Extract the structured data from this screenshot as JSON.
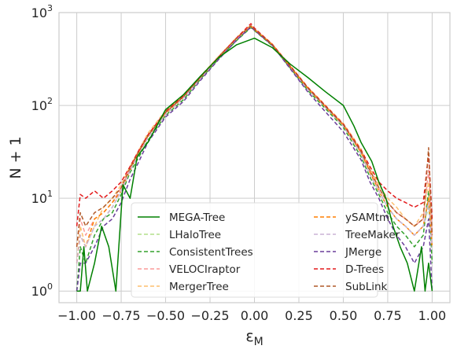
{
  "chart_data": {
    "type": "line",
    "xlabel": "ε",
    "xlabel_sub": "M",
    "ylabel": "N + 1",
    "xlim": [
      -1.1,
      1.1
    ],
    "ylim": [
      0.75,
      1000
    ],
    "yscale": "log",
    "grid": true,
    "legend_placement": "lower-center",
    "legend_columns": 2,
    "x_ticks": [
      -1.0,
      -0.75,
      -0.5,
      -0.25,
      0.0,
      0.25,
      0.5,
      0.75,
      1.0
    ],
    "x_tick_labels": [
      "−1.00",
      "−0.75",
      "−0.50",
      "−0.25",
      "0.00",
      "0.25",
      "0.50",
      "0.75",
      "1.00"
    ],
    "y_ticks": [
      1,
      10,
      100,
      1000
    ],
    "y_tick_labels": [
      {
        "base": "10",
        "exp": "0"
      },
      {
        "base": "10",
        "exp": "1"
      },
      {
        "base": "10",
        "exp": "2"
      },
      {
        "base": "10",
        "exp": "3"
      }
    ],
    "series": [
      {
        "name": "MEGA-Tree",
        "color": "#008000",
        "dash": "solid",
        "x": [
          -1.0,
          -0.98,
          -0.96,
          -0.94,
          -0.9,
          -0.86,
          -0.82,
          -0.78,
          -0.74,
          -0.7,
          -0.66,
          -0.6,
          -0.5,
          -0.4,
          -0.3,
          -0.2,
          -0.1,
          0.0,
          0.1,
          0.2,
          0.3,
          0.4,
          0.5,
          0.56,
          0.6,
          0.66,
          0.7,
          0.74,
          0.78,
          0.82,
          0.86,
          0.9,
          0.94,
          0.96,
          0.98,
          1.0
        ],
        "y": [
          1,
          1,
          3,
          1,
          2,
          5,
          3,
          1,
          14,
          10,
          28,
          40,
          90,
          130,
          210,
          330,
          450,
          530,
          420,
          280,
          200,
          140,
          100,
          60,
          40,
          25,
          15,
          10,
          5,
          3,
          2,
          1,
          3,
          1,
          2,
          1
        ]
      },
      {
        "name": "LHaloTree",
        "color": "#b2df8a",
        "dash": "5,3",
        "x": [
          -1.0,
          -0.98,
          -0.95,
          -0.9,
          -0.85,
          -0.8,
          -0.75,
          -0.7,
          -0.65,
          -0.6,
          -0.5,
          -0.4,
          -0.3,
          -0.2,
          -0.1,
          -0.02,
          0.0,
          0.1,
          0.2,
          0.3,
          0.4,
          0.5,
          0.6,
          0.65,
          0.7,
          0.75,
          0.8,
          0.85,
          0.9,
          0.95,
          0.98,
          1.0
        ],
        "y": [
          2,
          4,
          3,
          5,
          6,
          8,
          12,
          20,
          30,
          45,
          80,
          120,
          200,
          330,
          520,
          700,
          650,
          450,
          260,
          150,
          95,
          60,
          30,
          18,
          12,
          8,
          6,
          5,
          4,
          5,
          8,
          3
        ]
      },
      {
        "name": "ConsistentTrees",
        "color": "#33a02c",
        "dash": "5,3",
        "x": [
          -1.0,
          -0.98,
          -0.95,
          -0.9,
          -0.85,
          -0.8,
          -0.75,
          -0.7,
          -0.65,
          -0.6,
          -0.5,
          -0.4,
          -0.3,
          -0.2,
          -0.1,
          -0.02,
          0.0,
          0.1,
          0.2,
          0.3,
          0.4,
          0.5,
          0.6,
          0.65,
          0.7,
          0.75,
          0.8,
          0.85,
          0.9,
          0.95,
          0.98,
          1.0
        ],
        "y": [
          1,
          3,
          2,
          4,
          6,
          7,
          11,
          19,
          28,
          42,
          78,
          115,
          195,
          320,
          500,
          690,
          640,
          440,
          255,
          145,
          92,
          58,
          28,
          17,
          11,
          7,
          5,
          4,
          3,
          4,
          12,
          2
        ]
      },
      {
        "name": "VELOCIraptor",
        "color": "#fb9a99",
        "dash": "5,3",
        "x": [
          -1.0,
          -0.98,
          -0.95,
          -0.9,
          -0.85,
          -0.8,
          -0.75,
          -0.7,
          -0.65,
          -0.6,
          -0.5,
          -0.4,
          -0.3,
          -0.2,
          -0.1,
          -0.02,
          0.0,
          0.1,
          0.2,
          0.3,
          0.4,
          0.5,
          0.6,
          0.65,
          0.7,
          0.75,
          0.8,
          0.85,
          0.9,
          0.95,
          0.98,
          1.0
        ],
        "y": [
          3,
          6,
          4,
          6,
          7,
          9,
          13,
          21,
          32,
          48,
          85,
          125,
          205,
          335,
          530,
          720,
          660,
          455,
          265,
          155,
          98,
          62,
          32,
          20,
          13,
          9,
          7,
          6,
          5,
          6,
          20,
          4
        ]
      },
      {
        "name": "MergerTree",
        "color": "#fdbf6f",
        "dash": "5,3",
        "x": [
          -1.0,
          -0.98,
          -0.95,
          -0.9,
          -0.85,
          -0.8,
          -0.75,
          -0.7,
          -0.65,
          -0.6,
          -0.5,
          -0.4,
          -0.3,
          -0.2,
          -0.1,
          -0.02,
          0.0,
          0.1,
          0.2,
          0.3,
          0.4,
          0.5,
          0.6,
          0.65,
          0.7,
          0.75,
          0.8,
          0.85,
          0.9,
          0.95,
          0.98,
          1.0
        ],
        "y": [
          2,
          5,
          3,
          5,
          8,
          10,
          14,
          22,
          33,
          50,
          88,
          128,
          210,
          340,
          540,
          730,
          670,
          460,
          270,
          158,
          100,
          64,
          34,
          21,
          14,
          10,
          8,
          6,
          5,
          7,
          15,
          3
        ]
      },
      {
        "name": "ySAMtm",
        "color": "#ff7f00",
        "dash": "5,3",
        "x": [
          -1.0,
          -0.98,
          -0.95,
          -0.9,
          -0.85,
          -0.8,
          -0.75,
          -0.7,
          -0.65,
          -0.6,
          -0.5,
          -0.4,
          -0.3,
          -0.2,
          -0.1,
          -0.02,
          0.0,
          0.1,
          0.2,
          0.3,
          0.4,
          0.5,
          0.6,
          0.65,
          0.7,
          0.75,
          0.8,
          0.85,
          0.9,
          0.95,
          0.98,
          1.0
        ],
        "y": [
          2,
          4,
          3,
          6,
          7,
          9,
          12,
          20,
          31,
          46,
          82,
          122,
          202,
          330,
          525,
          710,
          655,
          450,
          262,
          152,
          96,
          61,
          31,
          19,
          12,
          8,
          6,
          5,
          4,
          5,
          10,
          3
        ]
      },
      {
        "name": "TreeMaker",
        "color": "#cab2d6",
        "dash": "5,3",
        "x": [
          -1.0,
          -0.98,
          -0.95,
          -0.9,
          -0.85,
          -0.8,
          -0.75,
          -0.7,
          -0.65,
          -0.6,
          -0.5,
          -0.4,
          -0.3,
          -0.2,
          -0.1,
          -0.02,
          0.0,
          0.1,
          0.2,
          0.3,
          0.4,
          0.5,
          0.6,
          0.65,
          0.7,
          0.75,
          0.8,
          0.85,
          0.9,
          0.95,
          0.98,
          1.0
        ],
        "y": [
          2,
          4,
          3,
          5,
          6,
          8,
          12,
          20,
          30,
          45,
          80,
          120,
          200,
          330,
          520,
          700,
          650,
          450,
          260,
          150,
          95,
          60,
          30,
          18,
          12,
          8,
          6,
          5,
          4,
          5,
          9,
          3
        ]
      },
      {
        "name": "JMerge",
        "color": "#6a3d9a",
        "dash": "5,3",
        "x": [
          -1.0,
          -0.98,
          -0.95,
          -0.9,
          -0.85,
          -0.8,
          -0.75,
          -0.7,
          -0.65,
          -0.6,
          -0.5,
          -0.4,
          -0.3,
          -0.2,
          -0.1,
          -0.02,
          0.0,
          0.1,
          0.2,
          0.3,
          0.4,
          0.5,
          0.6,
          0.65,
          0.7,
          0.75,
          0.8,
          0.85,
          0.9,
          0.95,
          0.98,
          1.0
        ],
        "y": [
          1,
          2,
          2,
          3,
          5,
          6,
          9,
          16,
          25,
          40,
          75,
          110,
          190,
          315,
          505,
          700,
          645,
          445,
          250,
          140,
          85,
          52,
          26,
          15,
          10,
          6,
          4,
          3,
          2,
          3,
          6,
          1
        ]
      },
      {
        "name": "D-Trees",
        "color": "#e31a1c",
        "dash": "5,3",
        "x": [
          -1.0,
          -0.98,
          -0.95,
          -0.9,
          -0.85,
          -0.8,
          -0.75,
          -0.7,
          -0.65,
          -0.6,
          -0.5,
          -0.4,
          -0.3,
          -0.2,
          -0.1,
          -0.02,
          0.0,
          0.1,
          0.2,
          0.3,
          0.4,
          0.5,
          0.6,
          0.65,
          0.7,
          0.75,
          0.8,
          0.85,
          0.9,
          0.95,
          0.98,
          1.0
        ],
        "y": [
          5,
          11,
          10,
          12,
          10,
          12,
          15,
          22,
          33,
          48,
          86,
          126,
          206,
          336,
          535,
          760,
          680,
          455,
          268,
          156,
          99,
          63,
          33,
          22,
          15,
          12,
          10,
          9,
          8,
          9,
          30,
          6
        ]
      },
      {
        "name": "SubLink",
        "color": "#b15928",
        "dash": "5,3",
        "x": [
          -1.0,
          -0.98,
          -0.95,
          -0.9,
          -0.85,
          -0.8,
          -0.75,
          -0.7,
          -0.65,
          -0.6,
          -0.5,
          -0.4,
          -0.3,
          -0.2,
          -0.1,
          -0.02,
          0.0,
          0.1,
          0.2,
          0.3,
          0.4,
          0.5,
          0.6,
          0.65,
          0.7,
          0.75,
          0.8,
          0.85,
          0.9,
          0.95,
          0.98,
          1.0
        ],
        "y": [
          3,
          7,
          5,
          7,
          8,
          10,
          13,
          21,
          32,
          47,
          84,
          124,
          204,
          334,
          530,
          720,
          660,
          452,
          264,
          154,
          97,
          62,
          32,
          20,
          13,
          9,
          7,
          6,
          5,
          6,
          35,
          4
        ]
      }
    ]
  }
}
